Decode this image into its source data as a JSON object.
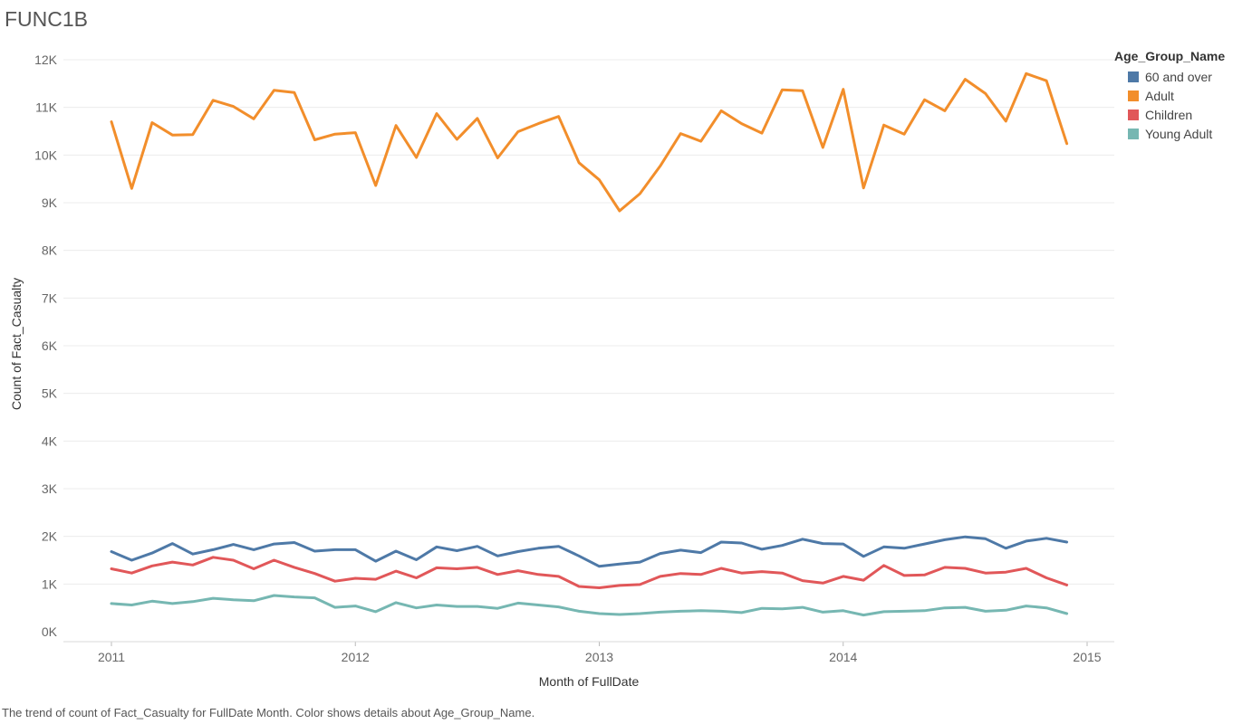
{
  "page": {
    "title": "FUNC1B",
    "caption": "The trend of count of Fact_Casualty for FullDate Month.  Color shows details about Age_Group_Name."
  },
  "chart_data": {
    "type": "line",
    "title": "FUNC1B",
    "xlabel": "Month of FullDate",
    "ylabel": "Count of Fact_Casualty",
    "x_ticks": [
      "2011",
      "2012",
      "2013",
      "2014",
      "2015"
    ],
    "y_ticks": [
      "0K",
      "1K",
      "2K",
      "3K",
      "4K",
      "5K",
      "6K",
      "7K",
      "8K",
      "9K",
      "10K",
      "11K",
      "12K"
    ],
    "ylim": [
      0,
      12000
    ],
    "xlim": [
      "2011-01",
      "2015-01"
    ],
    "grid": true,
    "legend": {
      "title": "Age_Group_Name",
      "placement": "right"
    },
    "x": [
      "2011-01",
      "2011-02",
      "2011-03",
      "2011-04",
      "2011-05",
      "2011-06",
      "2011-07",
      "2011-08",
      "2011-09",
      "2011-10",
      "2011-11",
      "2011-12",
      "2012-01",
      "2012-02",
      "2012-03",
      "2012-04",
      "2012-05",
      "2012-06",
      "2012-07",
      "2012-08",
      "2012-09",
      "2012-10",
      "2012-11",
      "2012-12",
      "2013-01",
      "2013-02",
      "2013-03",
      "2013-04",
      "2013-05",
      "2013-06",
      "2013-07",
      "2013-08",
      "2013-09",
      "2013-10",
      "2013-11",
      "2013-12",
      "2014-01",
      "2014-02",
      "2014-03",
      "2014-04",
      "2014-05",
      "2014-06",
      "2014-07",
      "2014-08",
      "2014-09",
      "2014-10",
      "2014-11",
      "2014-12"
    ],
    "series": [
      {
        "name": "60 and over",
        "color": "#4e79a7",
        "values": [
          1680,
          1500,
          1650,
          1850,
          1630,
          1720,
          1830,
          1720,
          1840,
          1870,
          1690,
          1720,
          1720,
          1480,
          1690,
          1510,
          1780,
          1700,
          1790,
          1590,
          1680,
          1750,
          1790,
          1590,
          1370,
          1420,
          1460,
          1640,
          1710,
          1660,
          1880,
          1860,
          1730,
          1810,
          1940,
          1850,
          1840,
          1580,
          1780,
          1750,
          1840,
          1930,
          1990,
          1950,
          1750,
          1900,
          1960,
          1880
        ]
      },
      {
        "name": "Adult",
        "color": "#f28e2b",
        "values": [
          10700,
          9300,
          10680,
          10420,
          10430,
          11150,
          11020,
          10760,
          11360,
          11310,
          10320,
          10440,
          10470,
          9360,
          10620,
          9950,
          10870,
          10330,
          10770,
          9940,
          10490,
          10660,
          10810,
          9840,
          9480,
          8830,
          9190,
          9770,
          10450,
          10290,
          10930,
          10660,
          10460,
          11370,
          11350,
          10160,
          11380,
          9310,
          10630,
          10440,
          11160,
          10930,
          11590,
          11290,
          10710,
          11710,
          11560,
          10240
        ]
      },
      {
        "name": "Children",
        "color": "#e15759",
        "values": [
          1320,
          1230,
          1380,
          1460,
          1400,
          1560,
          1500,
          1320,
          1500,
          1350,
          1220,
          1060,
          1120,
          1100,
          1270,
          1130,
          1340,
          1320,
          1350,
          1200,
          1280,
          1200,
          1160,
          950,
          920,
          970,
          990,
          1160,
          1220,
          1200,
          1330,
          1230,
          1260,
          1230,
          1070,
          1020,
          1160,
          1080,
          1390,
          1180,
          1190,
          1350,
          1330,
          1230,
          1250,
          1330,
          1130,
          980
        ]
      },
      {
        "name": "Young Adult",
        "color": "#76b7b2",
        "values": [
          590,
          560,
          640,
          590,
          630,
          700,
          670,
          650,
          760,
          730,
          710,
          510,
          540,
          420,
          610,
          500,
          560,
          530,
          530,
          490,
          600,
          560,
          520,
          430,
          380,
          360,
          380,
          410,
          430,
          440,
          430,
          400,
          490,
          480,
          510,
          410,
          440,
          350,
          420,
          430,
          440,
          500,
          510,
          430,
          450,
          540,
          500,
          380
        ]
      }
    ]
  }
}
